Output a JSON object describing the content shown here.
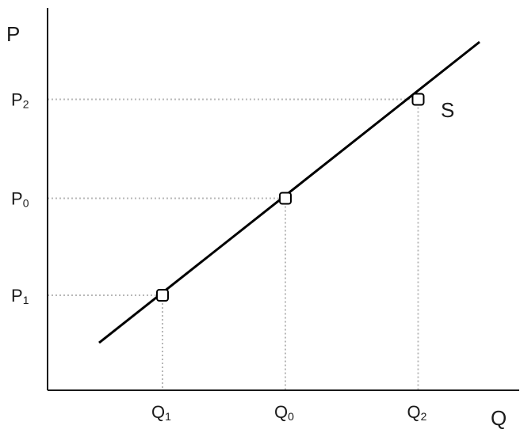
{
  "chart_data": {
    "type": "line",
    "title": "",
    "xlabel": "Q",
    "ylabel": "P",
    "xlim": [
      0,
      10
    ],
    "ylim": [
      0,
      10
    ],
    "grid": false,
    "series": [
      {
        "name": "S",
        "color": "#000000",
        "x": [
          1.3,
          10.9
        ],
        "y": [
          1.2,
          8.8
        ]
      }
    ],
    "points": [
      {
        "x": 2.9,
        "y": 2.4,
        "x_label": "Q",
        "x_sub": "1",
        "y_label": "P",
        "y_sub": "1"
      },
      {
        "x": 6.0,
        "y": 4.85,
        "x_label": "Q",
        "x_sub": "0",
        "y_label": "P",
        "y_sub": "0"
      },
      {
        "x": 9.35,
        "y": 7.35,
        "x_label": "Q",
        "x_sub": "2",
        "y_label": "P",
        "y_sub": "2"
      }
    ],
    "colors": {
      "axis": "#1a1a1a",
      "curve": "#000000",
      "guide": "#b8b8b8",
      "marker_fill": "#ffffff"
    }
  }
}
